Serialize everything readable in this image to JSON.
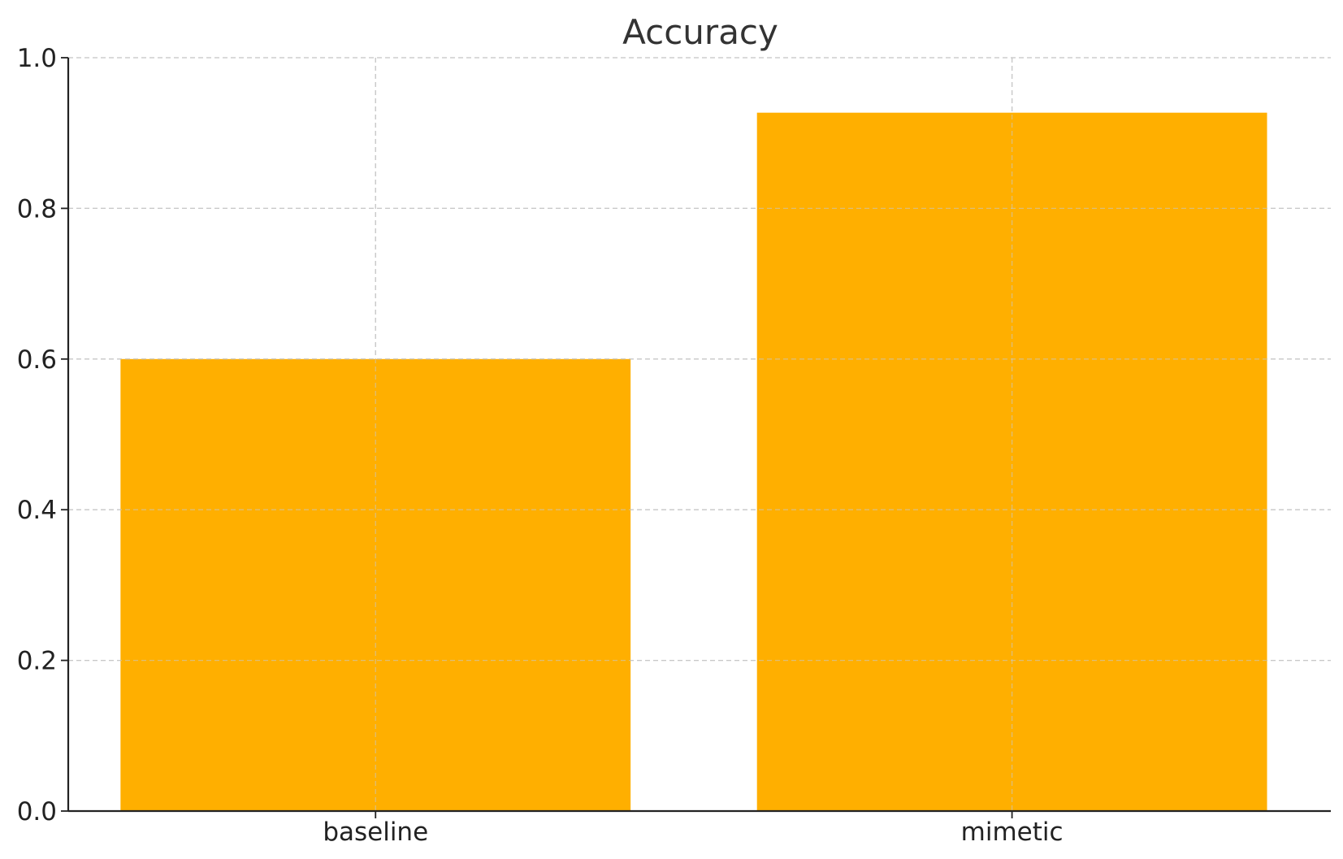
{
  "chart_data": {
    "type": "bar",
    "title": "Accuracy",
    "xlabel": "",
    "ylabel": "",
    "categories": [
      "baseline",
      "mimetic"
    ],
    "values": [
      0.6,
      0.927
    ],
    "ylim": [
      0,
      1.0
    ],
    "yticks": [
      0.0,
      0.2,
      0.4,
      0.6,
      0.8,
      1.0
    ],
    "ytick_labels": [
      "0.0",
      "0.2",
      "0.4",
      "0.6",
      "0.8",
      "1.0"
    ],
    "bar_color": "#FFAF00",
    "grid": true,
    "legend": "none"
  }
}
